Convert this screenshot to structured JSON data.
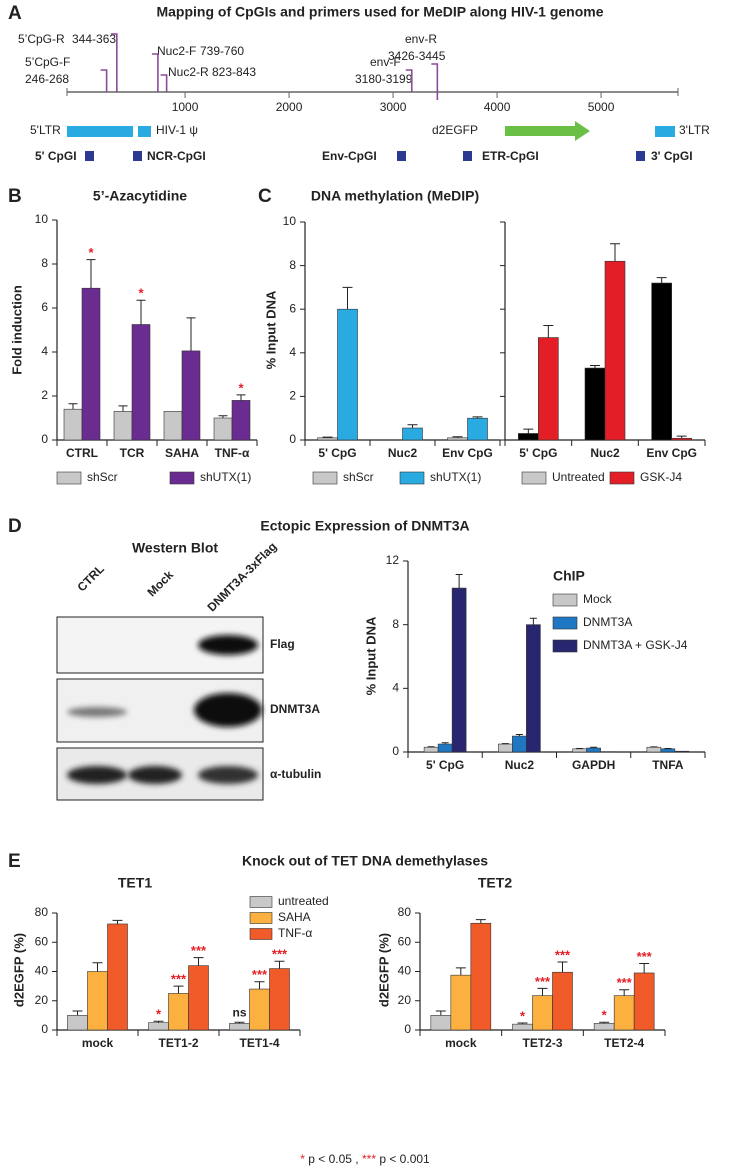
{
  "panel_labels": [
    "A",
    "B",
    "C",
    "D",
    "E"
  ],
  "genome_map": {
    "title": "Mapping of CpGIs and primers used for MeDIP along HIV-1 genome",
    "xlim": [
      -135,
      5740
    ],
    "xticks": [
      1000,
      2000,
      3000,
      4000,
      5000
    ],
    "primers": [
      {
        "name": "5’CpG-F",
        "range": "246-268",
        "start": 246
      },
      {
        "name": "5’CpG-R",
        "range": "344-363",
        "start": 344
      },
      {
        "name": "Nuc2-F",
        "range": "739-760",
        "start": 739
      },
      {
        "name": "Nuc2-R",
        "range": "823-843",
        "start": 823
      },
      {
        "name": "env-F",
        "range": "3180-3199",
        "start": 3180
      },
      {
        "name": "env-R",
        "range": "3426-3445",
        "start": 3426
      }
    ],
    "features": {
      "ltr5": "5'LTR",
      "psi": "HIV-1 ψ",
      "egfp": "d2EGFP",
      "ltr3": "3'LTR"
    },
    "cpgis": [
      "5' CpGI",
      "NCR-CpGI",
      "Env-CpGI",
      "ETR-CpGI",
      "3' CpGI"
    ]
  },
  "panel_titles": {
    "D": "Ectopic Expression of DNMT3A",
    "E": "Knock out of TET DNA demethylases"
  },
  "western_blot": {
    "title": "Western Blot",
    "lanes": [
      "CTRL",
      "Mock",
      "DNMT3A-3xFlag"
    ],
    "blots": [
      "Flag",
      "DNMT3A",
      "α-tubulin"
    ]
  },
  "footnote": [
    "*",
    " p < 0.05 , ",
    "***",
    " p < 0.001"
  ],
  "chart_data": [
    {
      "type": "bar",
      "title": "5’-Azacytidine",
      "ylabel": "Fold induction",
      "categories": [
        "CTRL",
        "TCR",
        "SAHA",
        "TNF-α"
      ],
      "ylim": [
        0,
        10
      ],
      "yticks": [
        0,
        2,
        4,
        6,
        8,
        10
      ],
      "legend": "bottom",
      "series": [
        {
          "name": "shScr",
          "color": "#c8c8c8",
          "values": [
            1.4,
            1.3,
            1.3,
            1.0
          ],
          "errors": [
            0.25,
            0.25,
            0,
            0.1
          ]
        },
        {
          "name": "shUTX(1)",
          "color": "#6a2c91",
          "values": [
            6.9,
            5.25,
            4.05,
            1.8
          ],
          "errors": [
            1.3,
            1.1,
            1.5,
            0.25
          ],
          "significance": [
            "*",
            "*",
            null,
            "*"
          ]
        }
      ]
    },
    {
      "type": "bar",
      "title": "DNA methylation (MeDIP)",
      "ylabel": "% Input DNA",
      "categories": [
        "5' CpG",
        "Nuc2",
        "Env CpG"
      ],
      "ylim": [
        0,
        10
      ],
      "yticks": [
        0,
        2,
        4,
        6,
        8,
        10
      ],
      "legend": "bottom",
      "series": [
        {
          "name": "shScr",
          "color": "#c8c8c8",
          "values": [
            0.1,
            0,
            0.1
          ],
          "errors": [
            0.03,
            0,
            0.05
          ]
        },
        {
          "name": "shUTX(1)",
          "color": "#29abe2",
          "values": [
            6.0,
            0.55,
            1.0
          ],
          "errors": [
            1.0,
            0.15,
            0.06
          ]
        }
      ]
    },
    {
      "type": "bar",
      "categories": [
        "5' CpG",
        "Nuc2",
        "Env CpG"
      ],
      "ylim": [
        0,
        10
      ],
      "yticks": [
        0,
        2,
        4,
        6,
        8,
        10
      ],
      "tick_labels": false,
      "legend": "bottom",
      "series": [
        {
          "name": "Untreated",
          "color": "#000000",
          "legend_color": "#c8c8c8",
          "values": [
            0.3,
            3.3,
            7.2
          ],
          "errors": [
            0.2,
            0.12,
            0.25
          ]
        },
        {
          "name": "GSK-J4",
          "color": "#e41e26",
          "values": [
            4.7,
            8.2,
            0.08
          ],
          "errors": [
            0.55,
            0.8,
            0.1
          ]
        }
      ]
    },
    {
      "type": "bar",
      "title": "ChIP",
      "ylabel": "% Input DNA",
      "categories": [
        "5' CpG",
        "Nuc2",
        "GAPDH",
        "TNFA"
      ],
      "ylim": [
        0,
        12
      ],
      "yticks": [
        0,
        4,
        8,
        12
      ],
      "legend": "upper right",
      "series": [
        {
          "name": "Mock",
          "color": "#c8c8c8",
          "values": [
            0.3,
            0.5,
            0.2,
            0.3
          ],
          "errors": [
            0.03,
            0.03,
            0.02,
            0.02
          ]
        },
        {
          "name": "DNMT3A",
          "color": "#1f77c4",
          "values": [
            0.5,
            1.0,
            0.25,
            0.2
          ],
          "errors": [
            0.08,
            0.1,
            0.05,
            0.02
          ]
        },
        {
          "name": "DNMT3A + GSK-J4",
          "color": "#27266e",
          "values": [
            10.3,
            8.0,
            0.02,
            0.05
          ],
          "errors": [
            0.85,
            0.4,
            0,
            0
          ]
        }
      ]
    },
    {
      "type": "bar",
      "title": "TET1",
      "ylabel": "d2EGFP (%)",
      "categories": [
        "mock",
        "TET1-2",
        "TET1-4"
      ],
      "ylim": [
        0,
        80
      ],
      "yticks": [
        0,
        20,
        40,
        60,
        80
      ],
      "legend": "upper right",
      "series": [
        {
          "name": "untreated",
          "color": "#c8c8c8",
          "values": [
            10,
            5,
            4.5
          ],
          "errors": [
            3,
            1,
            0.8
          ],
          "significance": [
            null,
            "*",
            "ns"
          ]
        },
        {
          "name": "SAHA",
          "color": "#fbb040",
          "values": [
            40,
            25,
            28
          ],
          "errors": [
            6,
            5,
            5
          ],
          "significance": [
            null,
            "***",
            "***"
          ]
        },
        {
          "name": "TNF-α",
          "color": "#f15a29",
          "values": [
            72.5,
            44,
            42
          ],
          "errors": [
            2.5,
            5.5,
            5
          ],
          "significance": [
            null,
            "***",
            "***"
          ]
        }
      ]
    },
    {
      "type": "bar",
      "title": "TET2",
      "ylabel": "d2EGFP (%)",
      "categories": [
        "mock",
        "TET2-3",
        "TET2-4"
      ],
      "ylim": [
        0,
        80
      ],
      "yticks": [
        0,
        20,
        40,
        60,
        80
      ],
      "legend": false,
      "series": [
        {
          "color": "#c8c8c8",
          "values": [
            10,
            4,
            4.5
          ],
          "errors": [
            3,
            0.8,
            0.8
          ],
          "significance": [
            null,
            "*",
            "*"
          ]
        },
        {
          "color": "#fbb040",
          "values": [
            37.5,
            23.5,
            23.5
          ],
          "errors": [
            5,
            5,
            4
          ],
          "significance": [
            null,
            "***",
            "***"
          ]
        },
        {
          "color": "#f15a29",
          "values": [
            73,
            39.5,
            39
          ],
          "errors": [
            2.5,
            7,
            6.5
          ],
          "significance": [
            null,
            "***",
            "***"
          ]
        }
      ]
    }
  ]
}
